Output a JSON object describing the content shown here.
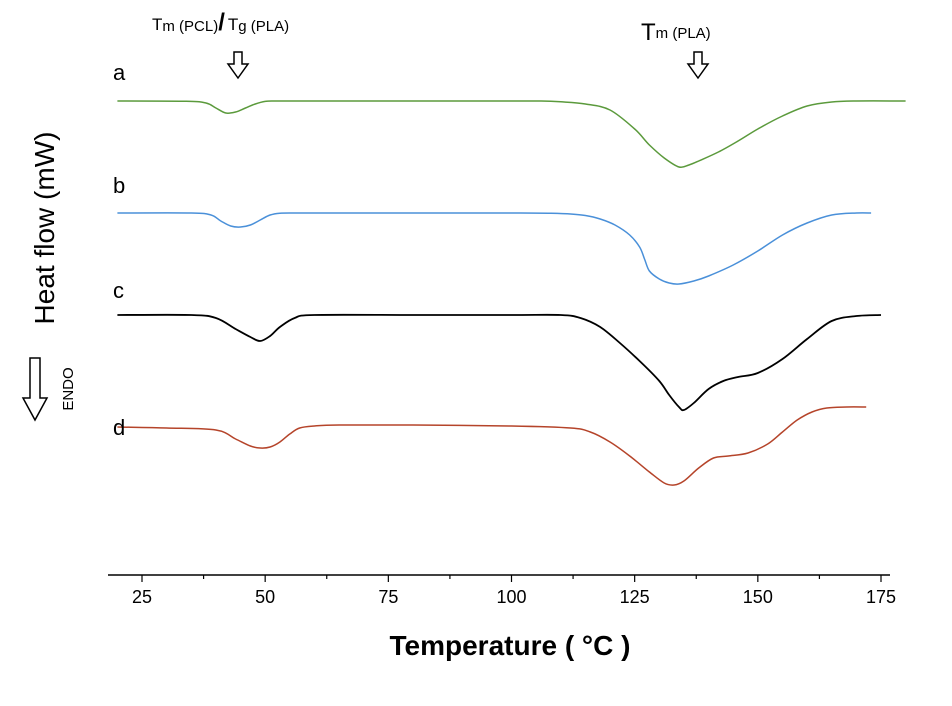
{
  "chart_data": {
    "type": "line",
    "xlabel": "Temperature ( °C )",
    "ylabel": "Heat flow (mW)",
    "endo_label": "ENDO",
    "xlim": [
      20,
      180
    ],
    "xticks": [
      25,
      50,
      75,
      100,
      125,
      150,
      175
    ],
    "grid": false,
    "annotations": {
      "left_main_a": "T",
      "left_sub_a": "m (PCL)",
      "left_sep": "/",
      "left_main_b": "T",
      "left_sub_b": "g (PLA)",
      "right_main": "T",
      "right_sub": "m (PLA)"
    },
    "series": [
      {
        "name": "a",
        "color": "#5b9a3c",
        "x": [
          20,
          34,
          38,
          40,
          42,
          44,
          46,
          48,
          50,
          52,
          55,
          60,
          80,
          100,
          106,
          110,
          115,
          120,
          125,
          128,
          131,
          134,
          136,
          138,
          142,
          146,
          150,
          155,
          160,
          165,
          170,
          180
        ],
        "y": [
          0,
          -0.3,
          -2,
          -7,
          -12,
          -11,
          -7,
          -3,
          -0.4,
          0,
          0,
          0,
          0,
          0,
          0,
          -0.8,
          -3,
          -9,
          -28,
          -44,
          -57,
          -66,
          -64,
          -60,
          -51,
          -40,
          -28,
          -15,
          -5,
          -1,
          0,
          0
        ]
      },
      {
        "name": "b",
        "color": "#4a90d9",
        "x": [
          20,
          35,
          39,
          41,
          43,
          45,
          47,
          49,
          51,
          53,
          56,
          60,
          80,
          100,
          108,
          112,
          115,
          118,
          121,
          124,
          126,
          127,
          128,
          130,
          132,
          134,
          137,
          140,
          145,
          150,
          155,
          160,
          165,
          170,
          173
        ],
        "y": [
          0,
          0,
          -2,
          -8,
          -13,
          -14,
          -12,
          -7,
          -2,
          -0.2,
          0,
          0,
          0,
          0,
          -0.3,
          -1,
          -2.5,
          -6,
          -12,
          -22,
          -34,
          -46,
          -58,
          -66,
          -70,
          -71,
          -68,
          -63,
          -52,
          -38,
          -22,
          -10,
          -2,
          0,
          0
        ]
      },
      {
        "name": "c",
        "color": "#000000",
        "x": [
          20,
          35,
          40,
          44,
          47,
          49,
          51,
          53,
          56,
          60,
          80,
          100,
          110,
          114,
          118,
          122,
          126,
          130,
          132,
          134,
          135,
          137,
          140,
          143,
          146,
          150,
          155,
          160,
          165,
          170,
          175
        ],
        "y": [
          0,
          0,
          -3,
          -14,
          -22,
          -26,
          -21,
          -12,
          -3,
          0,
          0,
          0,
          0,
          -3,
          -12,
          -28,
          -46,
          -66,
          -80,
          -92,
          -95,
          -88,
          -74,
          -66,
          -62,
          -58,
          -44,
          -24,
          -6,
          -1,
          0
        ]
      },
      {
        "name": "d",
        "color": "#b5442a",
        "x": [
          20,
          30,
          40,
          44,
          47,
          49,
          51,
          53,
          55,
          57,
          60,
          65,
          80,
          100,
          112,
          116,
          120,
          124,
          128,
          131,
          133,
          135,
          138,
          141,
          144,
          148,
          152,
          155,
          158,
          161,
          164,
          168,
          172
        ],
        "y": [
          23,
          22,
          20,
          11,
          4,
          2,
          3,
          8,
          16,
          22,
          24,
          25,
          25,
          24,
          22,
          18,
          8,
          -6,
          -22,
          -33,
          -35,
          -31,
          -18,
          -8,
          -6,
          -3,
          6,
          18,
          30,
          38,
          42,
          43,
          43
        ]
      }
    ]
  }
}
